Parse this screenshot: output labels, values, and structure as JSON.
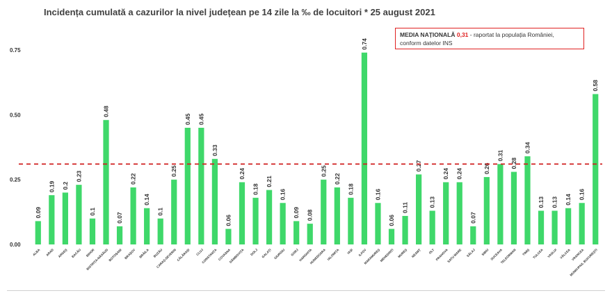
{
  "title": "Incidența cumulată a cazurilor la nivel județean pe 14 zile la ‰ de locuitori * 25 august 2021",
  "note": {
    "label": "MEDIA NAȚIONALĂ",
    "value": "0,31",
    "text_1": " - raportat la populația României,",
    "text_2": "conform datelor INS"
  },
  "colors": {
    "bar": "#3fd86a",
    "reference": "#d02020",
    "text": "#333333"
  },
  "chart_data": {
    "type": "bar",
    "title": "Incidența cumulată a cazurilor la nivel județean pe 14 zile la ‰ de locuitori * 25 august 2021",
    "ylim": [
      0,
      0.8
    ],
    "yticks": [
      "0.00",
      "0.25",
      "0.50",
      "0.75"
    ],
    "grid": false,
    "reference_line": {
      "value": 0.31,
      "style": "dashed"
    },
    "categories": [
      "ALBA",
      "ARAD",
      "ARGEȘ",
      "BACĂU",
      "BIHOR",
      "BISTRIȚA-NĂSĂUD",
      "BOTOȘANI",
      "BRAȘOV",
      "BRĂILA",
      "BUZĂU",
      "CARAȘ-SEVERIN",
      "CĂLĂRAȘI",
      "CLUJ",
      "CONSTANȚA",
      "COVASNA",
      "DÂMBOVIȚA",
      "DOLJ",
      "GALAȚI",
      "GIURGIU",
      "GORJ",
      "HARGHITA",
      "HUNEDOARA",
      "IALOMIȚA",
      "IAȘI",
      "ILFOV",
      "MARAMUREȘ",
      "MEHEDINȚI",
      "MUREȘ",
      "NEAMȚ",
      "OLT",
      "PRAHOVA",
      "SATU MARE",
      "SĂLAJ",
      "SIBIU",
      "SUCEAVA",
      "TELEORMAN",
      "TIMIȘ",
      "TULCEA",
      "VASLUI",
      "VÂLCEA",
      "VRANCEA",
      "MUNICIPIUL BUCUREȘTI"
    ],
    "values": [
      0.09,
      0.19,
      0.2,
      0.23,
      0.1,
      0.48,
      0.07,
      0.22,
      0.14,
      0.1,
      0.25,
      0.45,
      0.45,
      0.33,
      0.06,
      0.24,
      0.18,
      0.21,
      0.16,
      0.09,
      0.08,
      0.25,
      0.22,
      0.18,
      0.74,
      0.16,
      0.06,
      0.11,
      0.27,
      0.13,
      0.24,
      0.24,
      0.07,
      0.26,
      0.31,
      0.28,
      0.34,
      0.13,
      0.13,
      0.14,
      0.16,
      0.58
    ],
    "value_labels": [
      "0.09",
      "0.19",
      "0.2",
      "0.23",
      "0.1",
      "0.48",
      "0.07",
      "0.22",
      "0.14",
      "0.1",
      "0.25",
      "0.45",
      "0.45",
      "0.33",
      "0.06",
      "0.24",
      "0.18",
      "0.21",
      "0.16",
      "0.09",
      "0.08",
      "0.25",
      "0.22",
      "0.18",
      "0.74",
      "0.16",
      "0.06",
      "0.11",
      "0.27",
      "0.13",
      "0.24",
      "0.24",
      "0.07",
      "0.26",
      "0.31",
      "0.28",
      "0.34",
      "0.13",
      "0.13",
      "0.14",
      "0.16",
      "0.58"
    ]
  }
}
